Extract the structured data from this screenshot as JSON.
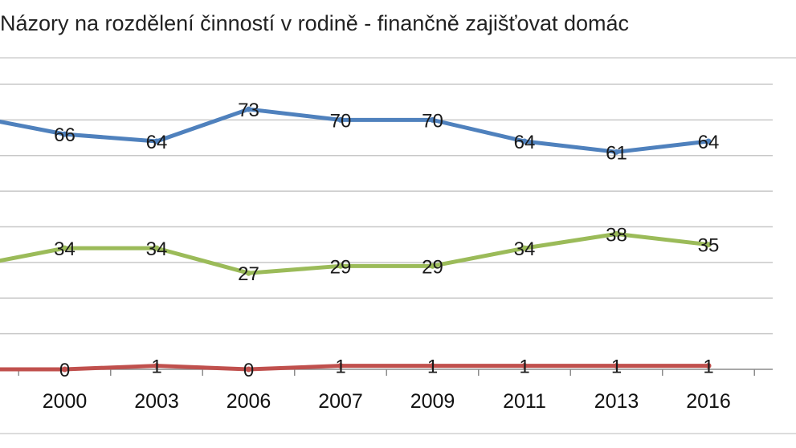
{
  "chart_data": {
    "type": "line",
    "title": "Názory na rozdělení činností v rodině - finančně zajišťovat domác",
    "categories": [
      "",
      "2000",
      "2003",
      "2006",
      "2007",
      "2009",
      "2011",
      "2013",
      "2016"
    ],
    "ylim": [
      0,
      80
    ],
    "grid": true,
    "series": [
      {
        "color": "#4f81bd",
        "values": [
          71,
          66,
          64,
          73,
          70,
          70,
          64,
          61,
          64
        ],
        "labels": [
          "",
          "66",
          "64",
          "73",
          "70",
          "70",
          "64",
          "61",
          "64"
        ]
      },
      {
        "color": "#9bbb59",
        "values": [
          29,
          34,
          34,
          27,
          29,
          29,
          34,
          38,
          35
        ],
        "labels": [
          "",
          "34",
          "34",
          "27",
          "29",
          "29",
          "34",
          "38",
          "35"
        ]
      },
      {
        "color": "#c0504d",
        "values": [
          0,
          0,
          1,
          0,
          1,
          1,
          1,
          1,
          1
        ],
        "labels": [
          "",
          "0",
          "1",
          "0",
          "1",
          "1",
          "1",
          "1",
          "1"
        ]
      }
    ]
  }
}
